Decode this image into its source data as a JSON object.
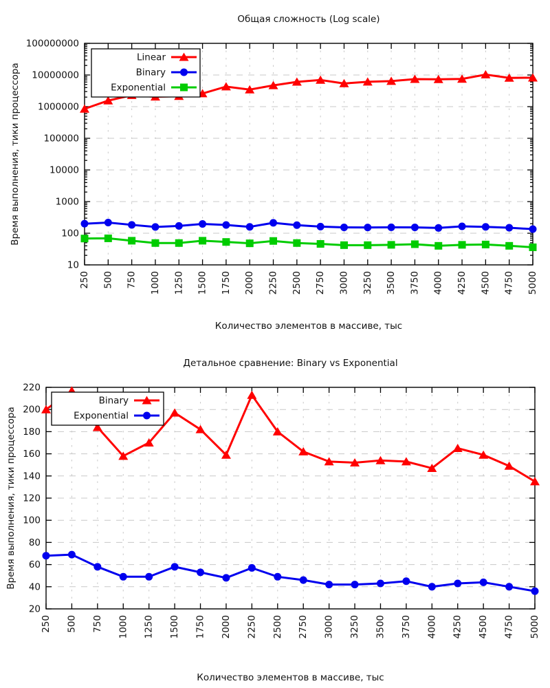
{
  "chart_data": [
    {
      "type": "line",
      "title": "Общая сложность (Log scale)",
      "xlabel": "Количество элементов в массиве, тыс",
      "ylabel": "Время выполнения, тики процессора",
      "x": [
        250,
        500,
        750,
        1000,
        1250,
        1500,
        1750,
        2000,
        2250,
        2500,
        2750,
        3000,
        3250,
        3500,
        3750,
        4000,
        4250,
        4500,
        4750,
        5000
      ],
      "yscale": "log",
      "ylim": [
        10,
        100000000
      ],
      "yticks": [
        10,
        100,
        1000,
        10000,
        100000,
        1000000,
        10000000,
        100000000
      ],
      "grid": true,
      "legend_position": "top-left",
      "series": [
        {
          "name": "Linear",
          "color": "#ff0000",
          "marker": "triangle",
          "values": [
            850000,
            1550000,
            2300000,
            2050000,
            2150000,
            2600000,
            4300000,
            3450000,
            4700000,
            6050000,
            6950000,
            5400000,
            6100000,
            6400000,
            7400000,
            7300000,
            7500000,
            10300000,
            8100000,
            8200000
          ]
        },
        {
          "name": "Binary",
          "color": "#0000ee",
          "marker": "circle",
          "values": [
            200,
            217,
            184,
            158,
            170,
            197,
            182,
            159,
            213,
            180,
            162,
            153,
            152,
            154,
            153,
            147,
            165,
            159,
            149,
            135
          ]
        },
        {
          "name": "Exponential",
          "color": "#00cc00",
          "marker": "square",
          "values": [
            68,
            69,
            58,
            49,
            49,
            58,
            53,
            48,
            57,
            49,
            46,
            42,
            42,
            43,
            45,
            40,
            43,
            44,
            40,
            36
          ]
        }
      ]
    },
    {
      "type": "line",
      "title": "Детальное сравнение: Binary vs Exponential",
      "xlabel": "Количество элементов в массиве, тыс",
      "ylabel": "Время выполнения, тики процессора",
      "x": [
        250,
        500,
        750,
        1000,
        1250,
        1500,
        1750,
        2000,
        2250,
        2500,
        2750,
        3000,
        3250,
        3500,
        3750,
        4000,
        4250,
        4500,
        4750,
        5000
      ],
      "yscale": "linear",
      "ylim": [
        20,
        220
      ],
      "yticks": [
        20,
        40,
        60,
        80,
        100,
        120,
        140,
        160,
        180,
        200,
        220
      ],
      "grid": true,
      "legend_position": "top-left",
      "series": [
        {
          "name": "Binary",
          "color": "#ff0000",
          "marker": "triangle",
          "values": [
            200,
            217,
            184,
            158,
            170,
            197,
            182,
            159,
            213,
            180,
            162,
            153,
            152,
            154,
            153,
            147,
            165,
            159,
            149,
            135
          ]
        },
        {
          "name": "Exponential",
          "color": "#0000ee",
          "marker": "circle",
          "values": [
            68,
            69,
            58,
            49,
            49,
            58,
            53,
            48,
            57,
            49,
            46,
            42,
            42,
            43,
            45,
            40,
            43,
            44,
            40,
            36
          ]
        }
      ]
    }
  ],
  "colors": {
    "grid": "#c8c8c8",
    "axis": "#000000",
    "background": "#ffffff"
  }
}
